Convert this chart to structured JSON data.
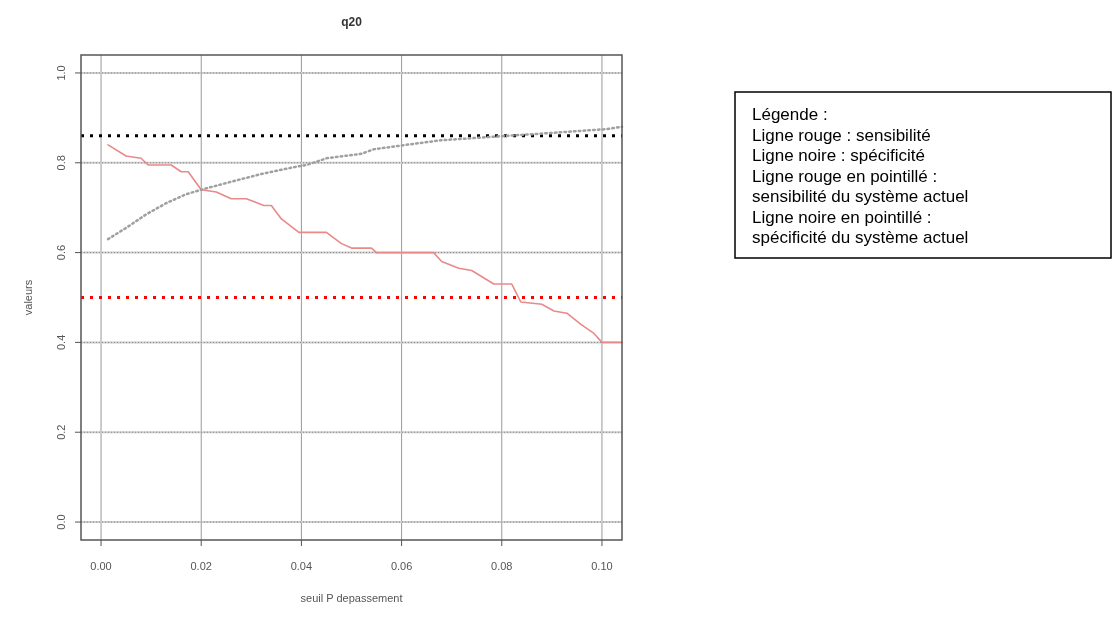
{
  "chart_data": {
    "type": "line",
    "title": "q20",
    "xlabel": "seuil P depassement",
    "ylabel": "valeurs",
    "xlim": [
      -0.004,
      0.104
    ],
    "ylim": [
      -0.04,
      1.04
    ],
    "xticks": [
      {
        "value": 0,
        "label": "0.00"
      },
      {
        "value": 0.02,
        "label": "0.02"
      },
      {
        "value": 0.04,
        "label": "0.04"
      },
      {
        "value": 0.06,
        "label": "0.06"
      },
      {
        "value": 0.08,
        "label": "0.08"
      },
      {
        "value": 0.1,
        "label": "0.10"
      }
    ],
    "yticks": [
      {
        "value": 0,
        "label": "0.0"
      },
      {
        "value": 0.2,
        "label": "0.2"
      },
      {
        "value": 0.4,
        "label": "0.4"
      },
      {
        "value": 0.6,
        "label": "0.6"
      },
      {
        "value": 0.8,
        "label": "0.8"
      },
      {
        "value": 1,
        "label": "1.0"
      }
    ],
    "grid": true,
    "marker": "none",
    "series": [
      {
        "color": "#e88a8a",
        "line_style": "solid",
        "x": [
          0.0014,
          0.005,
          0.008,
          0.0094,
          0.014,
          0.016,
          0.0174,
          0.02,
          0.023,
          0.026,
          0.029,
          0.0325,
          0.034,
          0.036,
          0.0395,
          0.041,
          0.045,
          0.048,
          0.05,
          0.054,
          0.055,
          0.0664,
          0.068,
          0.0714,
          0.074,
          0.0784,
          0.082,
          0.0838,
          0.088,
          0.0904,
          0.093,
          0.0958,
          0.0984,
          0.1,
          0.104
        ],
        "values": [
          0.84,
          0.815,
          0.81,
          0.795,
          0.795,
          0.78,
          0.78,
          0.74,
          0.735,
          0.72,
          0.72,
          0.705,
          0.705,
          0.675,
          0.645,
          0.645,
          0.645,
          0.62,
          0.61,
          0.61,
          0.6,
          0.6,
          0.58,
          0.565,
          0.56,
          0.53,
          0.53,
          0.49,
          0.485,
          0.47,
          0.465,
          0.44,
          0.42,
          0.4,
          0.4
        ]
      },
      {
        "color": "#a0a0a0",
        "line_style": "dotted",
        "x": [
          0.0014,
          0.005,
          0.009,
          0.013,
          0.017,
          0.02,
          0.025,
          0.032,
          0.0384,
          0.041,
          0.045,
          0.052,
          0.0544,
          0.061,
          0.0678,
          0.0744,
          0.081,
          0.088,
          0.0944,
          0.101,
          0.104
        ],
        "values": [
          0.63,
          0.655,
          0.685,
          0.71,
          0.73,
          0.74,
          0.755,
          0.775,
          0.79,
          0.795,
          0.81,
          0.82,
          0.83,
          0.84,
          0.85,
          0.855,
          0.86,
          0.865,
          0.87,
          0.875,
          0.88
        ]
      }
    ],
    "ref_lines": [
      {
        "axis": "y",
        "value": 0.86,
        "color": "#000000",
        "line_style": "dotted"
      },
      {
        "axis": "y",
        "value": 0.5,
        "color": "#ff0000",
        "line_style": "dotted"
      }
    ],
    "annotations": [
      "Légende :",
      "Ligne rouge : sensibilité",
      "Ligne noire : spécificité",
      "Ligne rouge en pointillé :",
      "sensibilité du système actuel",
      "Ligne noire en pointillé :",
      "spécificité du système actuel"
    ]
  }
}
